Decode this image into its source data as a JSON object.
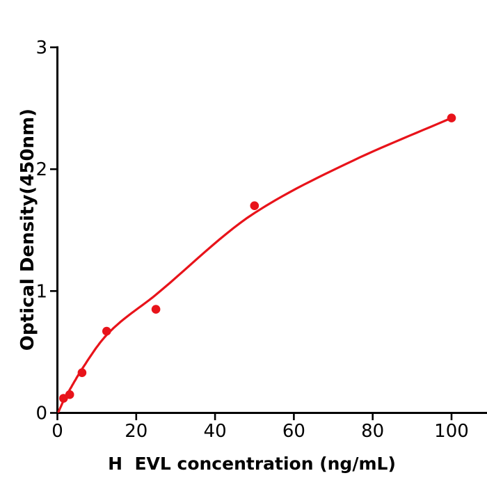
{
  "window": {
    "background": "#ffffff"
  },
  "chart_data": {
    "type": "scatter",
    "title": "",
    "xlabel": "H  EVL concentration (ng/mL)",
    "ylabel": "Optical Density(450nm)",
    "x_ticks": [
      0,
      20,
      40,
      60,
      80,
      100
    ],
    "y_ticks": [
      0,
      1,
      2,
      3
    ],
    "xlim": [
      0,
      108.8
    ],
    "ylim": [
      0,
      3
    ],
    "grid": false,
    "legend_position": "none",
    "axis_color": "#000000",
    "tick_label_color": "#000000",
    "marker_color": "#e8131a",
    "line_color": "#e8131a",
    "series": [
      {
        "name": "standard-points",
        "kind": "scatter",
        "x": [
          1.56,
          3.13,
          6.25,
          12.5,
          25,
          50,
          100
        ],
        "y": [
          0.12,
          0.15,
          0.33,
          0.67,
          0.85,
          1.7,
          2.42
        ]
      },
      {
        "name": "fit-curve",
        "kind": "line",
        "x": [
          0.3,
          1.56,
          3.13,
          6.25,
          12.5,
          25,
          50,
          75,
          100
        ],
        "y": [
          0.01,
          0.1,
          0.19,
          0.36,
          0.64,
          0.97,
          1.64,
          2.07,
          2.42
        ]
      }
    ]
  }
}
